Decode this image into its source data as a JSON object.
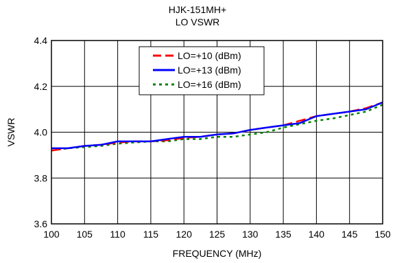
{
  "chart_data": {
    "type": "line",
    "title": "HJK-151MH+",
    "subtitle": "LO VSWR",
    "xlabel": "FREQUENCY (MHz)",
    "ylabel": "VSWR",
    "xlim": [
      100,
      150
    ],
    "ylim": [
      3.6,
      4.4
    ],
    "xticks": [
      100,
      105,
      110,
      115,
      120,
      125,
      130,
      135,
      140,
      145,
      150
    ],
    "yticks": [
      3.6,
      3.8,
      4.0,
      4.2,
      4.4
    ],
    "ytick_labels": [
      "3.6",
      "3.8",
      "4.0",
      "4.2",
      "4.4"
    ],
    "grid": true,
    "legend": "top-center",
    "x": [
      100,
      102.5,
      105,
      107.5,
      110,
      112.5,
      115,
      117.5,
      120,
      122.5,
      125,
      127.5,
      130,
      132.5,
      135,
      137.5,
      140,
      142.5,
      145,
      147.5,
      150
    ],
    "series": [
      {
        "name": "LO=+10 (dBm)",
        "color": "#ff0000",
        "dash": "long-dash",
        "values": [
          3.92,
          3.93,
          3.94,
          3.945,
          3.955,
          3.96,
          3.96,
          3.965,
          3.975,
          3.98,
          3.99,
          3.995,
          4.01,
          4.02,
          4.03,
          4.05,
          4.07,
          4.08,
          4.09,
          4.105,
          4.13
        ]
      },
      {
        "name": "LO=+13 (dBm)",
        "color": "#0000ff",
        "dash": "solid",
        "values": [
          3.93,
          3.93,
          3.94,
          3.945,
          3.96,
          3.96,
          3.96,
          3.97,
          3.98,
          3.98,
          3.99,
          3.995,
          4.01,
          4.02,
          4.03,
          4.04,
          4.07,
          4.08,
          4.09,
          4.1,
          4.13
        ]
      },
      {
        "name": "LO=+16 (dBm)",
        "color": "#008000",
        "dash": "dotted",
        "values": [
          3.92,
          3.93,
          3.935,
          3.94,
          3.95,
          3.955,
          3.96,
          3.96,
          3.97,
          3.97,
          3.98,
          3.98,
          3.99,
          4.0,
          4.02,
          4.035,
          4.05,
          4.06,
          4.075,
          4.09,
          4.12
        ]
      }
    ]
  }
}
